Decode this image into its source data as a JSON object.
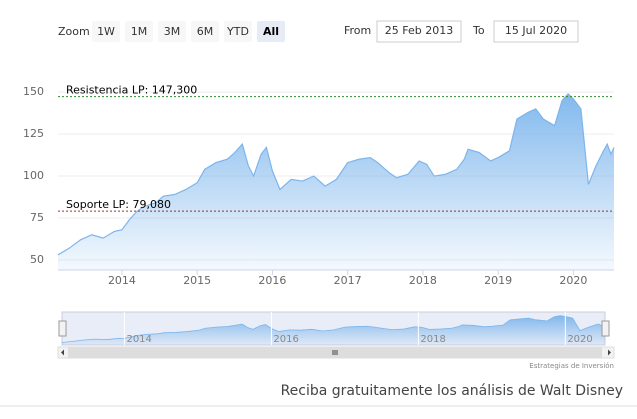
{
  "chart_data": {
    "type": "area",
    "range_selector": {
      "label": "Zoom",
      "buttons": [
        "1W",
        "1M",
        "3M",
        "6M",
        "YTD",
        "All"
      ],
      "selected": 5,
      "from_label": "From",
      "from": "25 Feb 2013",
      "to_label": "To",
      "to": "15 Jul 2020"
    },
    "x": [
      2013.15,
      2013.3,
      2013.45,
      2013.6,
      2013.75,
      2013.9,
      2014.0,
      2014.1,
      2014.2,
      2014.3,
      2014.45,
      2014.55,
      2014.7,
      2014.85,
      2015.0,
      2015.1,
      2015.25,
      2015.4,
      2015.5,
      2015.6,
      2015.68,
      2015.75,
      2015.85,
      2015.92,
      2016.0,
      2016.1,
      2016.25,
      2016.4,
      2016.55,
      2016.7,
      2016.85,
      2017.0,
      2017.15,
      2017.3,
      2017.4,
      2017.55,
      2017.65,
      2017.8,
      2017.95,
      2018.05,
      2018.15,
      2018.3,
      2018.45,
      2018.55,
      2018.6,
      2018.75,
      2018.9,
      2019.0,
      2019.15,
      2019.25,
      2019.4,
      2019.5,
      2019.6,
      2019.75,
      2019.85,
      2019.93,
      2020.0,
      2020.1,
      2020.2,
      2020.3,
      2020.4,
      2020.45,
      2020.5,
      2020.54
    ],
    "series": [
      {
        "name": "Walt Disney",
        "color": "#7cb5ec",
        "values": [
          53,
          57,
          62,
          65,
          63,
          67,
          68,
          74,
          79,
          82,
          84,
          88,
          89,
          92,
          96,
          104,
          108,
          110,
          114,
          119,
          106,
          100,
          113,
          117,
          103,
          92,
          98,
          97,
          100,
          94,
          98,
          108,
          110,
          111,
          108,
          102,
          99,
          101,
          109,
          107,
          100,
          101,
          104,
          110,
          116,
          114,
          109,
          111,
          115,
          134,
          138,
          140,
          134,
          130,
          145,
          149,
          146,
          140,
          95,
          106,
          115,
          119,
          113,
          117
        ]
      }
    ],
    "xlim": [
      2013.15,
      2020.54
    ],
    "xticks": [
      2014,
      2015,
      2016,
      2017,
      2018,
      2019,
      2020
    ],
    "ylim": [
      44,
      162
    ],
    "yticks": [
      50,
      75,
      100,
      125,
      150
    ],
    "grid": true,
    "reference_lines": [
      {
        "value": 147.3,
        "label": "Resistencia LP: 147,300",
        "color": "#2e8b2e"
      },
      {
        "value": 79.08,
        "label": "Soporte LP: 79,080",
        "color": "#a03030"
      }
    ],
    "navigator_xticks": [
      2014,
      2016,
      2018,
      2020
    ],
    "credit": "Estrategias de Inversión",
    "footer": "Reciba gratuitamente los análisis de Walt Disney"
  }
}
